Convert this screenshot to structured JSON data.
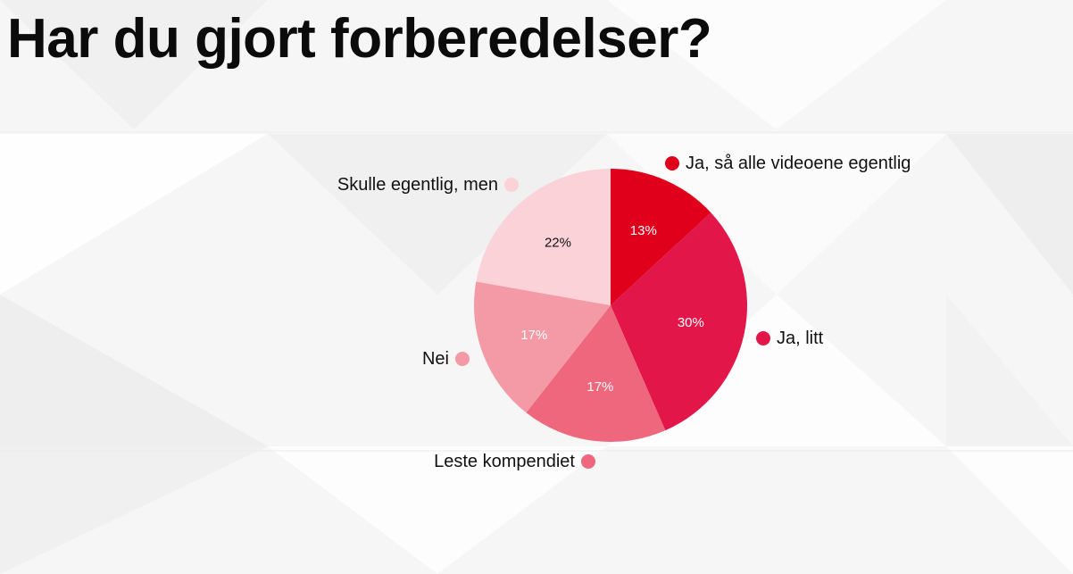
{
  "title": "Har du gjort forberedelser?",
  "chart_data": {
    "type": "pie",
    "title": "Har du gjort forberedelser?",
    "legend_placement": "labels-around-pie",
    "slices": [
      {
        "label": "Ja, så alle videoene egentlig",
        "value": 13,
        "value_label": "13%",
        "color": "#e0001b",
        "text_color": "#ffffff"
      },
      {
        "label": "Ja, litt",
        "value": 30,
        "value_label": "30%",
        "color": "#e31649",
        "text_color": "#ffffff"
      },
      {
        "label": "Leste kompendiet",
        "value": 17,
        "value_label": "17%",
        "color": "#ee677d",
        "text_color": "#ffffff"
      },
      {
        "label": "Nei",
        "value": 17,
        "value_label": "17%",
        "color": "#f49aa6",
        "text_color": "#ffffff"
      },
      {
        "label": "Skulle egentlig, men",
        "value": 22,
        "value_label": "22%",
        "color": "#fbd2d8",
        "text_color": "#111111"
      }
    ]
  }
}
